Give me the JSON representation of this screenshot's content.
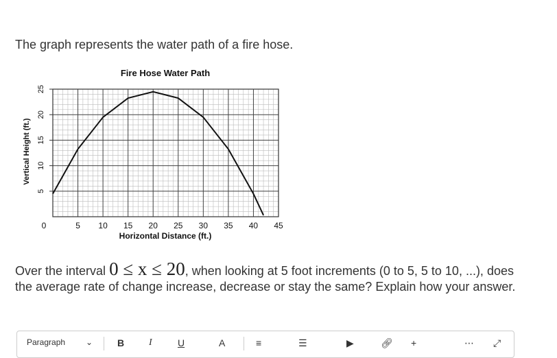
{
  "intro": "The graph represents the water path of a fire hose.",
  "chart_data": {
    "type": "line",
    "title": "Fire Hose Water Path",
    "x_label": "Horizontal Distance (ft.)",
    "y_label": "Vertical Height (ft.)",
    "x": [
      0,
      5,
      10,
      15,
      20,
      25,
      30,
      35,
      40,
      42
    ],
    "series": [
      {
        "color": "#111111",
        "values": [
          4.5,
          13.25,
          19.5,
          23.25,
          24.5,
          23.25,
          19.5,
          13.25,
          4.5,
          0.3
        ]
      }
    ],
    "xlim": [
      0,
      45
    ],
    "ylim": [
      0,
      25
    ],
    "xticks": [
      0,
      5,
      10,
      15,
      20,
      25,
      30,
      35,
      40,
      45
    ],
    "yticks": [
      5,
      10,
      15,
      20,
      25
    ],
    "grid": true
  },
  "question": {
    "before": "Over the interval ",
    "math": "0 ≤ x ≤ 20",
    "after": ", when looking at 5 foot increments (0 to 5, 5 to 10, ...), does the average rate of change increase, decrease or stay the same?  Explain how your answer."
  },
  "toolbar": {
    "style": "Paragraph",
    "bold": "B",
    "italic": "I",
    "underline": "U",
    "color": "A"
  }
}
